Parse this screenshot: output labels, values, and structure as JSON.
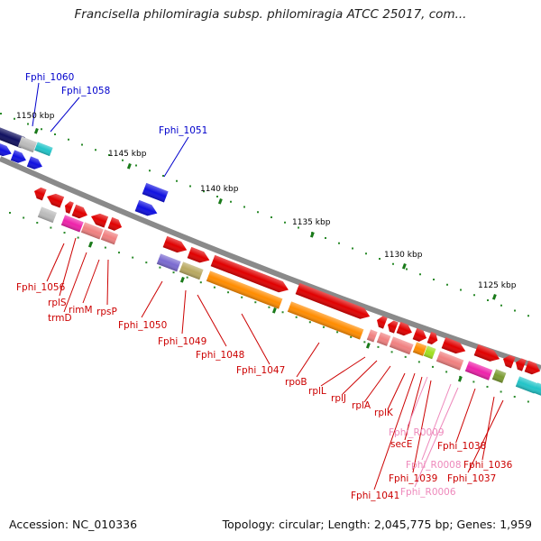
{
  "title": "Francisella philomiragia subsp. philomiragia ATCC 25017, com...",
  "accession_label": "Accession: NC_010336",
  "summary_label": "Topology: circular; Length: 2,045,775 bp; Genes: 1,959",
  "scale_labels": [
    "1150 kbp",
    "1145 kbp",
    "1140 kbp",
    "1135 kbp",
    "1130 kbp",
    "1125 kbp"
  ],
  "colors": {
    "forward_gene": "#e00000",
    "reverse_gene": "#1010e0",
    "label_red": "#cc0000",
    "label_blue": "#0000cc",
    "label_pink": "#ee88bb",
    "backbone": "#888888"
  },
  "gene_labels": {
    "top": [
      "Fphi_1060",
      "Fphi_1058",
      "Fphi_1051"
    ],
    "bottom_red": [
      "Fphi_1056",
      "rplS",
      "trmD",
      "rimM",
      "rpsP",
      "Fphi_1050",
      "Fphi_1049",
      "Fphi_1048",
      "Fphi_1047",
      "rpoB",
      "rplL",
      "rplJ",
      "rplA",
      "rplK",
      "secE",
      "Fphi_1041",
      "Fphi_1039",
      "Fphi_1038",
      "Fphi_1037",
      "Fphi_1036"
    ],
    "bottom_pink": [
      "Fphi_R0009",
      "Fphi_R0008",
      "Fphi_R0006"
    ]
  }
}
